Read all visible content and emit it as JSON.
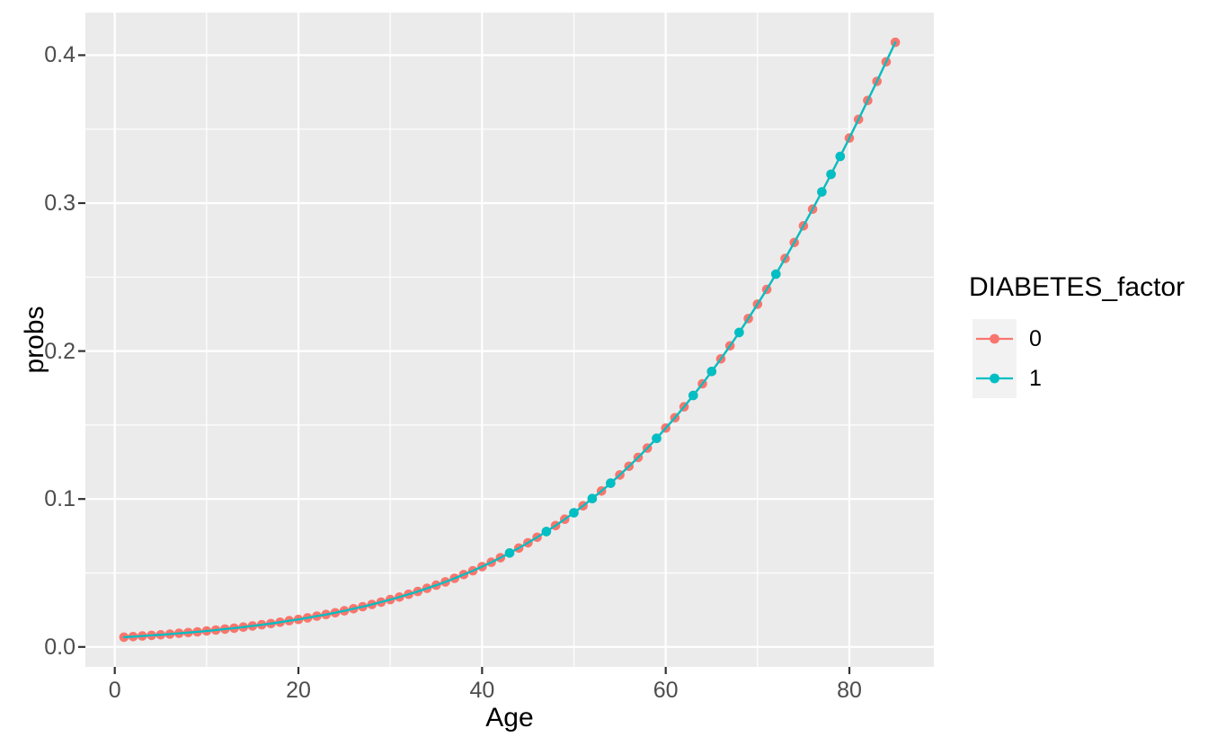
{
  "chart_data": {
    "type": "line",
    "title": "",
    "xlabel": "Age",
    "ylabel": "probs",
    "x_ticks": {
      "values": [
        0,
        20,
        40,
        60,
        80
      ],
      "labels": [
        "0",
        "20",
        "40",
        "60",
        "80"
      ]
    },
    "y_ticks": {
      "values": [
        0.0,
        0.1,
        0.2,
        0.3,
        0.4
      ],
      "labels": [
        "0.0",
        "0.1",
        "0.2",
        "0.3",
        "0.4"
      ]
    },
    "x_minor": [
      10,
      30,
      50,
      70
    ],
    "y_minor": [
      0.05,
      0.15,
      0.25,
      0.35
    ],
    "xlim": [
      -3.2,
      89.2
    ],
    "ylim": [
      -0.0135,
      0.4288
    ],
    "grid": true,
    "legend_position": "right",
    "panel_bg": "#EBEBEB",
    "grid_color": "#FFFFFF",
    "tick_mark_color": "#333333",
    "tick_label_color": "#4D4D4D",
    "legend": {
      "title": "DIABETES_factor",
      "key_bg": "#F2F2F2",
      "entries": [
        {
          "label": "0",
          "color": "#F8766D"
        },
        {
          "label": "1",
          "color": "#00BFC4"
        }
      ]
    },
    "x": [
      1,
      2,
      3,
      4,
      5,
      6,
      7,
      8,
      9,
      10,
      11,
      12,
      13,
      14,
      15,
      16,
      17,
      18,
      19,
      20,
      21,
      22,
      23,
      24,
      25,
      26,
      27,
      28,
      29,
      30,
      31,
      32,
      33,
      34,
      35,
      36,
      37,
      38,
      39,
      40,
      41,
      42,
      43,
      44,
      45,
      46,
      47,
      48,
      49,
      50,
      51,
      52,
      53,
      54,
      55,
      56,
      57,
      58,
      59,
      60,
      61,
      62,
      63,
      64,
      65,
      66,
      67,
      68,
      69,
      70,
      71,
      72,
      73,
      74,
      75,
      76,
      77,
      78,
      79,
      80,
      81,
      82,
      83,
      84,
      85
    ],
    "series": [
      {
        "name": "0",
        "color": "#F8766D",
        "point_ages": "all",
        "values": [
          0.0066,
          0.007,
          0.0074,
          0.0078,
          0.0082,
          0.0087,
          0.0092,
          0.0097,
          0.0102,
          0.0108,
          0.0114,
          0.0121,
          0.0127,
          0.0134,
          0.0142,
          0.015,
          0.0158,
          0.0167,
          0.0177,
          0.0186,
          0.0197,
          0.0208,
          0.0219,
          0.0231,
          0.0244,
          0.0258,
          0.0272,
          0.0287,
          0.0303,
          0.032,
          0.0337,
          0.0356,
          0.0375,
          0.0396,
          0.0417,
          0.044,
          0.0464,
          0.0489,
          0.0515,
          0.0543,
          0.0572,
          0.0603,
          0.0635,
          0.0668,
          0.0704,
          0.0741,
          0.078,
          0.082,
          0.0863,
          0.0907,
          0.0954,
          0.1003,
          0.1054,
          0.1107,
          0.1163,
          0.1221,
          0.1281,
          0.1344,
          0.141,
          0.1479,
          0.1549,
          0.1623,
          0.17,
          0.1779,
          0.1862,
          0.1947,
          0.2035,
          0.2126,
          0.222,
          0.2317,
          0.2417,
          0.252,
          0.2626,
          0.2734,
          0.2846,
          0.2959,
          0.3076,
          0.3195,
          0.3316,
          0.344,
          0.3566,
          0.3694,
          0.3823,
          0.3955,
          0.4087
        ]
      },
      {
        "name": "1",
        "color": "#00BFC4",
        "point_ages": [
          43,
          47,
          50,
          52,
          54,
          59,
          63,
          65,
          68,
          72,
          77,
          78,
          79
        ],
        "values": [
          0.0066,
          0.007,
          0.0074,
          0.0078,
          0.0082,
          0.0087,
          0.0092,
          0.0097,
          0.0102,
          0.0108,
          0.0114,
          0.0121,
          0.0127,
          0.0134,
          0.0142,
          0.015,
          0.0158,
          0.0167,
          0.0177,
          0.0186,
          0.0197,
          0.0208,
          0.0219,
          0.0231,
          0.0244,
          0.0258,
          0.0272,
          0.0287,
          0.0303,
          0.032,
          0.0337,
          0.0356,
          0.0375,
          0.0396,
          0.0417,
          0.044,
          0.0464,
          0.0489,
          0.0515,
          0.0543,
          0.0572,
          0.0603,
          0.0635,
          0.0668,
          0.0704,
          0.0741,
          0.078,
          0.082,
          0.0863,
          0.0907,
          0.0954,
          0.1003,
          0.1054,
          0.1107,
          0.1163,
          0.1221,
          0.1281,
          0.1344,
          0.141,
          0.1479,
          0.1549,
          0.1623,
          0.17,
          0.1779,
          0.1862,
          0.1947,
          0.2035,
          0.2126,
          0.222,
          0.2317,
          0.2417,
          0.252,
          0.2626,
          0.2734,
          0.2846,
          0.2959,
          0.3076,
          0.3195,
          0.3316,
          0.344,
          0.3566,
          0.3694,
          0.3823,
          0.3955,
          0.4087
        ]
      }
    ]
  }
}
